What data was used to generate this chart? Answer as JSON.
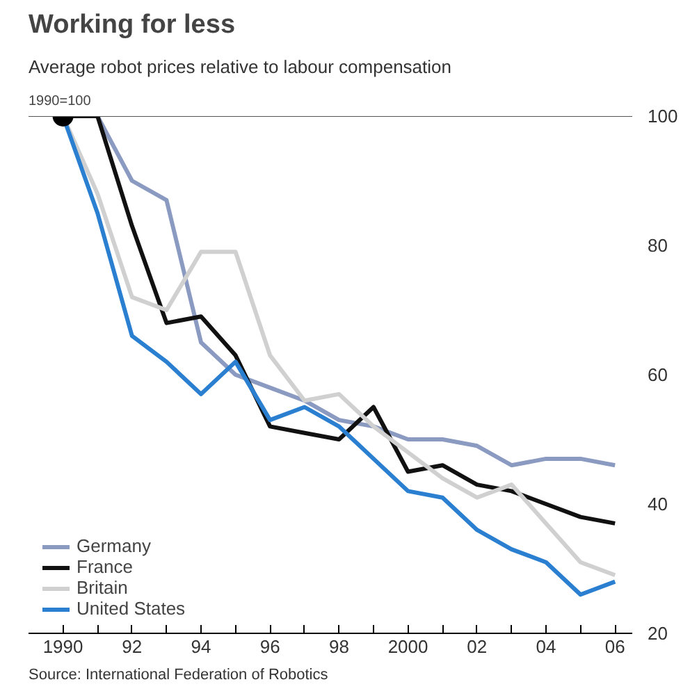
{
  "chart_data": {
    "type": "line",
    "title": "Working for less",
    "subtitle": "Average robot prices relative to labour compensation",
    "ylabel": "1990=100",
    "x": [
      1990,
      1991,
      1992,
      1993,
      1994,
      1995,
      1996,
      1997,
      1998,
      1999,
      2000,
      2001,
      2002,
      2003,
      2004,
      2005,
      2006
    ],
    "series": [
      {
        "name": "Germany",
        "color": "#8a9ac0",
        "values": [
          100,
          100,
          90,
          87,
          65,
          60,
          58,
          56,
          53,
          52,
          50,
          50,
          49,
          46,
          47,
          47,
          46
        ]
      },
      {
        "name": "France",
        "color": "#111111",
        "values": [
          100,
          100,
          83,
          68,
          69,
          63,
          52,
          51,
          50,
          55,
          45,
          46,
          43,
          42,
          40,
          38,
          37
        ]
      },
      {
        "name": "Britain",
        "color": "#d0d0d0",
        "values": [
          100,
          88,
          72,
          70,
          79,
          79,
          63,
          56,
          57,
          52,
          48,
          44,
          41,
          43,
          37,
          31,
          29
        ]
      },
      {
        "name": "United States",
        "color": "#2a7fd0",
        "values": [
          100,
          85,
          66,
          62,
          57,
          62,
          53,
          55,
          52,
          47,
          42,
          41,
          36,
          33,
          31,
          26,
          28
        ]
      },
      {
        "type": "scatter",
        "marker": "circle",
        "color": "#000000",
        "x": [
          1990
        ],
        "values": [
          100
        ]
      }
    ],
    "xlim": [
      1989,
      2006.5
    ],
    "ylim": [
      20,
      100
    ],
    "xticks": [
      {
        "value": 1990,
        "label": "1990"
      },
      {
        "value": 1991,
        "label": null
      },
      {
        "value": 1992,
        "label": "92"
      },
      {
        "value": 1993,
        "label": null
      },
      {
        "value": 1994,
        "label": "94"
      },
      {
        "value": 1995,
        "label": null
      },
      {
        "value": 1996,
        "label": "96"
      },
      {
        "value": 1997,
        "label": null
      },
      {
        "value": 1998,
        "label": "98"
      },
      {
        "value": 1999,
        "label": null
      },
      {
        "value": 2000,
        "label": "2000"
      },
      {
        "value": 2001,
        "label": null
      },
      {
        "value": 2002,
        "label": "02"
      },
      {
        "value": 2003,
        "label": null
      },
      {
        "value": 2004,
        "label": "04"
      },
      {
        "value": 2005,
        "label": null
      },
      {
        "value": 2006,
        "label": "06"
      }
    ],
    "yticks": [
      20,
      40,
      60,
      80,
      100
    ],
    "ref_lines": [
      {
        "axis": "y",
        "value": 100,
        "label": null,
        "color": "#555555"
      }
    ],
    "grid": false,
    "legend": "bottom left",
    "annotations": [
      "Source: International Federation of Robotics"
    ]
  }
}
